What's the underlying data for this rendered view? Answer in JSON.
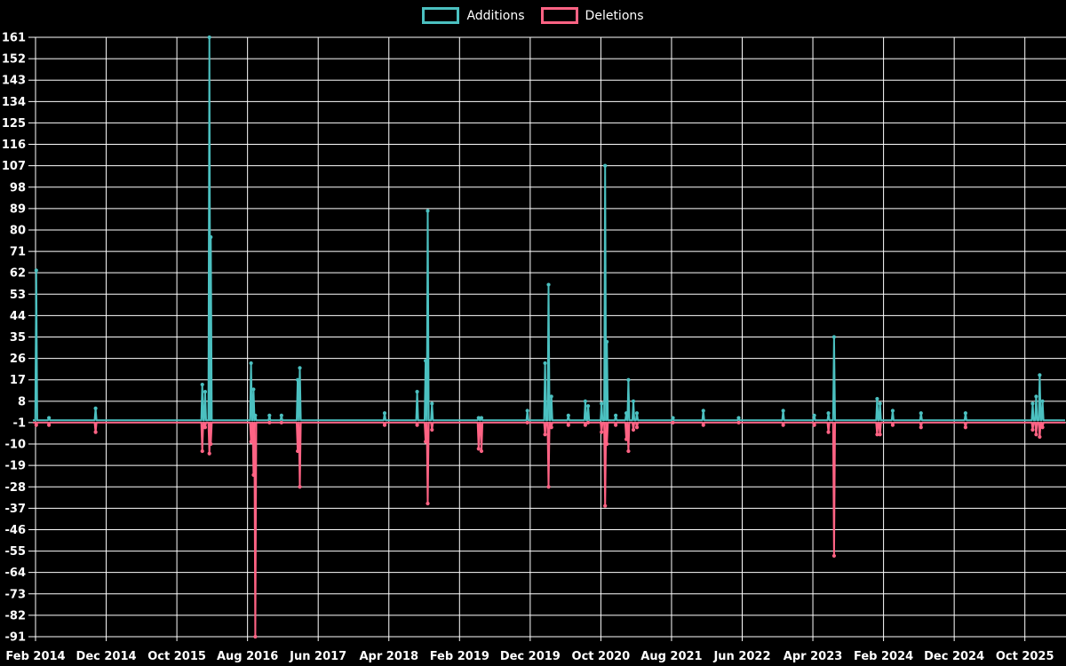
{
  "legend": {
    "additions_label": "Additions",
    "deletions_label": "Deletions"
  },
  "colors": {
    "additions": "#4bc0c0",
    "deletions": "#ff6384",
    "grid": "#ffffff",
    "background": "#000000",
    "text": "#ffffff"
  },
  "chart_data": {
    "type": "line",
    "title": "",
    "legend_position": "top",
    "grid": true,
    "series_names": [
      "Additions",
      "Deletions"
    ],
    "baselines": {
      "additions": 0,
      "deletions": -1
    },
    "y_axis": {
      "min": -91,
      "max": 161,
      "step": 9,
      "ticks": [
        -91,
        -82,
        -73,
        -64,
        -55,
        -46,
        -37,
        -28,
        -19,
        -10,
        -1,
        8,
        17,
        26,
        35,
        44,
        53,
        62,
        71,
        80,
        89,
        98,
        107,
        116,
        125,
        134,
        143,
        152,
        161
      ]
    },
    "x_axis": {
      "tick_labels": [
        "Feb 2014",
        "Dec 2014",
        "Oct 2015",
        "Aug 2016",
        "Jun 2017",
        "Apr 2018",
        "Feb 2019",
        "Dec 2019",
        "Oct 2020",
        "Aug 2021",
        "Jun 2022",
        "Apr 2023",
        "Feb 2024",
        "Dec 2024",
        "Oct 2025"
      ],
      "months_between_ticks": 10
    },
    "events": [
      {
        "date": "Feb 2014",
        "m": 0.1,
        "additions": 63,
        "deletions": -2
      },
      {
        "date": "Apr 2014",
        "m": 1.9,
        "additions": 1,
        "deletions": -2
      },
      {
        "date": "Oct 2014",
        "m": 8.5,
        "additions": 5,
        "deletions": -5
      },
      {
        "date": "Jan 2016",
        "m": 23.6,
        "additions": 15,
        "deletions": -13
      },
      {
        "date": "Feb 2016",
        "m": 24.0,
        "additions": 12,
        "deletions": -3
      },
      {
        "date": "Feb 2016",
        "m": 24.6,
        "additions": 161,
        "deletions": -14
      },
      {
        "date": "Mar 2016",
        "m": 24.8,
        "additions": 77,
        "deletions": -10
      },
      {
        "date": "Aug 2016",
        "m": 30.5,
        "additions": 24,
        "deletions": -9
      },
      {
        "date": "Aug 2016",
        "m": 30.85,
        "additions": 13,
        "deletions": -23
      },
      {
        "date": "Sep 2016",
        "m": 31.1,
        "additions": 2,
        "deletions": -91
      },
      {
        "date": "Nov 2016",
        "m": 33.1,
        "additions": 2,
        "deletions": -1
      },
      {
        "date": "Dec 2016",
        "m": 34.8,
        "additions": 2,
        "deletions": -1
      },
      {
        "date": "Mar 2017",
        "m": 37.1,
        "additions": 17,
        "deletions": -13
      },
      {
        "date": "Mar 2017",
        "m": 37.4,
        "additions": 22,
        "deletions": -28
      },
      {
        "date": "Mar 2018",
        "m": 49.4,
        "additions": 3,
        "deletions": -2
      },
      {
        "date": "Aug 2018",
        "m": 54.0,
        "additions": 12,
        "deletions": -2
      },
      {
        "date": "Sep 2018",
        "m": 55.2,
        "additions": 25,
        "deletions": -9
      },
      {
        "date": "Sep 2018",
        "m": 55.5,
        "additions": 88,
        "deletions": -35
      },
      {
        "date": "Oct 2018",
        "m": 56.1,
        "additions": 7,
        "deletions": -4
      },
      {
        "date": "Apr 2019",
        "m": 62.7,
        "additions": 1,
        "deletions": -12
      },
      {
        "date": "May 2019",
        "m": 63.1,
        "additions": 1,
        "deletions": -13
      },
      {
        "date": "Nov 2019",
        "m": 69.6,
        "additions": 4,
        "deletions": -1
      },
      {
        "date": "Feb 2020",
        "m": 72.1,
        "additions": 24,
        "deletions": -6
      },
      {
        "date": "Feb 2020",
        "m": 72.6,
        "additions": 57,
        "deletions": -28
      },
      {
        "date": "Mar 2020",
        "m": 73.0,
        "additions": 10,
        "deletions": -3
      },
      {
        "date": "May 2020",
        "m": 75.4,
        "additions": 2,
        "deletions": -2
      },
      {
        "date": "Jul 2020",
        "m": 77.8,
        "additions": 8,
        "deletions": -2
      },
      {
        "date": "Aug 2020",
        "m": 78.2,
        "additions": 6,
        "deletions": -1
      },
      {
        "date": "Oct 2020",
        "m": 80.1,
        "additions": 7,
        "deletions": -5
      },
      {
        "date": "Oct 2020",
        "m": 80.6,
        "additions": 107,
        "deletions": -36
      },
      {
        "date": "Oct 2020",
        "m": 80.85,
        "additions": 33,
        "deletions": -10
      },
      {
        "date": "Dec 2020",
        "m": 82.1,
        "additions": 2,
        "deletions": -2
      },
      {
        "date": "Jan 2021",
        "m": 83.6,
        "additions": 3,
        "deletions": -8
      },
      {
        "date": "Feb 2021",
        "m": 83.9,
        "additions": 17,
        "deletions": -13
      },
      {
        "date": "Feb 2021",
        "m": 84.6,
        "additions": 8,
        "deletions": -4
      },
      {
        "date": "Mar 2021",
        "m": 85.1,
        "additions": 3,
        "deletions": -3
      },
      {
        "date": "Aug 2021",
        "m": 90.2,
        "additions": 1,
        "deletions": -1
      },
      {
        "date": "Dec 2021",
        "m": 94.5,
        "additions": 4,
        "deletions": -2
      },
      {
        "date": "May 2022",
        "m": 99.5,
        "additions": 1,
        "deletions": -1
      },
      {
        "date": "Nov 2022",
        "m": 105.8,
        "additions": 4,
        "deletions": -2
      },
      {
        "date": "Apr 2023",
        "m": 110.2,
        "additions": 2,
        "deletions": -2
      },
      {
        "date": "Jun 2023",
        "m": 112.2,
        "additions": 3,
        "deletions": -5
      },
      {
        "date": "Jul 2023",
        "m": 113.0,
        "additions": 35,
        "deletions": -57
      },
      {
        "date": "Jan 2024",
        "m": 119.1,
        "additions": 9,
        "deletions": -6
      },
      {
        "date": "Jan 2024",
        "m": 119.5,
        "additions": 7,
        "deletions": -6
      },
      {
        "date": "Mar 2024",
        "m": 121.3,
        "additions": 4,
        "deletions": -2
      },
      {
        "date": "Jul 2024",
        "m": 125.3,
        "additions": 3,
        "deletions": -3
      },
      {
        "date": "Jan 2025",
        "m": 131.6,
        "additions": 3,
        "deletions": -3
      },
      {
        "date": "Nov 2025",
        "m": 141.1,
        "additions": 7,
        "deletions": -4
      },
      {
        "date": "Nov 2025",
        "m": 141.6,
        "additions": 10,
        "deletions": -6
      },
      {
        "date": "Dec 2025",
        "m": 142.1,
        "additions": 19,
        "deletions": -7
      },
      {
        "date": "Dec 2025",
        "m": 142.5,
        "additions": 8,
        "deletions": -3
      }
    ]
  }
}
